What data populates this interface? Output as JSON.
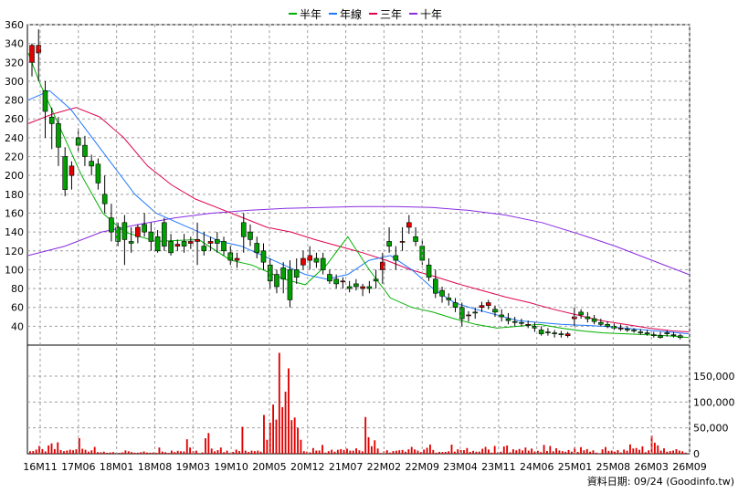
{
  "chart_data": {
    "type": "candlestick",
    "legend": [
      {
        "label": "半年",
        "color": "#00b000"
      },
      {
        "label": "年線",
        "color": "#1e78ff"
      },
      {
        "label": "三年",
        "color": "#e00050"
      },
      {
        "label": "十年",
        "color": "#8a2be2"
      }
    ],
    "price_axis": {
      "min": 20,
      "max": 360,
      "ticks": [
        40,
        60,
        80,
        100,
        120,
        140,
        160,
        180,
        200,
        220,
        240,
        260,
        280,
        300,
        320,
        340,
        360
      ]
    },
    "volume_axis": {
      "min": 0,
      "max": 210000,
      "ticks": [
        0,
        50000,
        100000,
        150000
      ],
      "tick_labels": [
        "0",
        "50,000",
        "100,000",
        "150,000"
      ]
    },
    "x_labels": [
      "16M11",
      "17M06",
      "18M01",
      "18M08",
      "19M03",
      "19M10",
      "20M05",
      "20M12",
      "21M07",
      "22M02",
      "22M09",
      "23M04",
      "23M11",
      "24M06",
      "25M01",
      "25M08",
      "26M03",
      "26M09"
    ],
    "candles": [
      [
        320,
        340,
        338,
        305
      ],
      [
        330,
        355,
        338,
        300
      ],
      [
        290,
        300,
        268,
        240
      ],
      [
        262,
        272,
        255,
        228
      ],
      [
        255,
        262,
        230,
        210
      ],
      [
        220,
        230,
        185,
        178
      ],
      [
        200,
        215,
        210,
        185
      ],
      [
        240,
        250,
        232,
        225
      ],
      [
        232,
        242,
        220,
        210
      ],
      [
        215,
        222,
        210,
        200
      ],
      [
        212,
        218,
        192,
        185
      ],
      [
        180,
        200,
        170,
        160
      ],
      [
        155,
        170,
        140,
        130
      ],
      [
        145,
        150,
        130,
        125
      ],
      [
        150,
        158,
        132,
        105
      ],
      [
        130,
        145,
        128,
        118
      ],
      [
        135,
        148,
        145,
        128
      ],
      [
        148,
        160,
        140,
        135
      ],
      [
        140,
        150,
        130,
        120
      ],
      [
        135,
        142,
        120,
        118
      ],
      [
        150,
        155,
        125,
        120
      ],
      [
        130,
        138,
        118,
        115
      ],
      [
        125,
        132,
        127,
        120
      ],
      [
        130,
        138,
        125,
        118
      ],
      [
        128,
        135,
        130,
        122
      ],
      [
        130,
        150,
        132,
        105
      ],
      [
        125,
        140,
        120,
        115
      ],
      [
        128,
        135,
        130,
        120
      ],
      [
        132,
        140,
        128,
        118
      ],
      [
        130,
        135,
        120,
        115
      ],
      [
        118,
        125,
        110,
        105
      ],
      [
        110,
        118,
        112,
        102
      ],
      [
        150,
        160,
        135,
        118
      ],
      [
        140,
        148,
        132,
        125
      ],
      [
        128,
        135,
        118,
        112
      ],
      [
        120,
        128,
        108,
        100
      ],
      [
        105,
        112,
        88,
        80
      ],
      [
        95,
        100,
        82,
        75
      ],
      [
        102,
        108,
        90,
        75
      ],
      [
        100,
        110,
        68,
        60
      ],
      [
        100,
        112,
        92,
        85
      ],
      [
        105,
        120,
        112,
        100
      ],
      [
        110,
        125,
        115,
        100
      ],
      [
        112,
        118,
        108,
        102
      ],
      [
        112,
        118,
        100,
        95
      ],
      [
        95,
        100,
        88,
        85
      ],
      [
        90,
        95,
        85,
        80
      ],
      [
        88,
        92,
        88,
        80
      ],
      [
        82,
        88,
        80,
        76
      ],
      [
        85,
        90,
        82,
        78
      ],
      [
        80,
        85,
        82,
        72
      ],
      [
        82,
        88,
        80,
        75
      ],
      [
        90,
        100,
        88,
        80
      ],
      [
        100,
        118,
        108,
        85
      ],
      [
        130,
        145,
        125,
        118
      ],
      [
        115,
        125,
        110,
        100
      ],
      [
        130,
        145,
        130,
        120
      ],
      [
        145,
        158,
        150,
        138
      ],
      [
        135,
        145,
        130,
        125
      ],
      [
        125,
        132,
        110,
        105
      ],
      [
        105,
        112,
        92,
        88
      ],
      [
        90,
        100,
        75,
        70
      ],
      [
        78,
        82,
        72,
        65
      ],
      [
        70,
        75,
        68,
        62
      ],
      [
        65,
        70,
        60,
        55
      ],
      [
        60,
        65,
        48,
        40
      ],
      [
        52,
        56,
        52,
        45
      ],
      [
        55,
        60,
        54,
        48
      ],
      [
        60,
        66,
        62,
        55
      ],
      [
        62,
        68,
        65,
        58
      ],
      [
        58,
        62,
        55,
        50
      ],
      [
        52,
        58,
        50,
        45
      ],
      [
        48,
        54,
        46,
        42
      ],
      [
        45,
        50,
        44,
        40
      ],
      [
        44,
        48,
        43,
        40
      ],
      [
        42,
        46,
        42,
        38
      ],
      [
        40,
        44,
        38,
        34
      ],
      [
        36,
        40,
        32,
        30
      ],
      [
        34,
        38,
        33,
        30
      ],
      [
        33,
        36,
        32,
        28
      ],
      [
        32,
        35,
        31,
        28
      ],
      [
        30,
        34,
        32,
        28
      ],
      [
        48,
        60,
        50,
        40
      ],
      [
        55,
        58,
        52,
        48
      ],
      [
        50,
        55,
        48,
        44
      ],
      [
        48,
        52,
        45,
        42
      ],
      [
        44,
        48,
        42,
        40
      ],
      [
        42,
        45,
        40,
        38
      ],
      [
        40,
        43,
        38,
        36
      ],
      [
        38,
        42,
        38,
        35
      ],
      [
        37,
        40,
        36,
        34
      ],
      [
        36,
        38,
        35,
        33
      ],
      [
        34,
        37,
        33,
        31
      ],
      [
        33,
        36,
        32,
        30
      ],
      [
        31,
        34,
        30,
        28
      ],
      [
        30,
        34,
        28,
        27
      ],
      [
        33,
        36,
        32,
        29
      ],
      [
        31,
        34,
        30,
        28
      ],
      [
        30,
        32,
        28,
        26
      ]
    ],
    "volumes": [
      4800,
      5200,
      8000,
      15000,
      9000,
      4500,
      16000,
      20000,
      9000,
      22000,
      7000,
      5000,
      6200,
      7800,
      6800,
      8500,
      30000,
      9600,
      7600,
      4000,
      6600,
      13200,
      3200,
      2800,
      4000,
      1800,
      2400,
      3200,
      1500,
      1800,
      2600,
      6400,
      4800,
      3300,
      2000,
      2000,
      3000,
      4400,
      2400,
      2000,
      2400,
      1800,
      12000,
      4200,
      3000,
      1600,
      6000,
      3200,
      5600,
      4700,
      4400,
      28000,
      12000,
      4800,
      6000,
      1200,
      2500,
      30000,
      40000,
      10000,
      4600,
      7000,
      12000,
      3000,
      6000,
      1500,
      3600,
      8000,
      5200,
      52000,
      6000,
      3400,
      6000,
      5000,
      6000,
      4000,
      75000,
      27000,
      60000,
      95000,
      66000,
      195000,
      90000,
      120000,
      165000,
      65000,
      70000,
      50000,
      27000,
      5000,
      4000,
      2600,
      11000,
      6000,
      6400,
      17000,
      2200,
      5000,
      7800,
      4000,
      7500,
      9000,
      7400,
      9800,
      6000,
      6000,
      10400,
      6600,
      4600,
      71000,
      32000,
      14500,
      26000,
      10000,
      1400,
      4400,
      6800,
      2100,
      5200,
      5800,
      6800,
      7300,
      4000,
      8600,
      13200,
      8300,
      6000,
      3000,
      8000,
      11600,
      17700,
      7400,
      2000,
      3600,
      3400,
      3600,
      4800,
      17600,
      4000,
      8600,
      7000,
      6900,
      11000,
      3600,
      5500,
      4000,
      4200,
      9600,
      13300,
      8100,
      2200,
      15000,
      2600,
      4000,
      14000,
      16000,
      2800,
      8600,
      6600,
      9200,
      6400,
      12000,
      6000,
      10000,
      4300,
      5700,
      3200,
      17000,
      5200,
      15000,
      4700,
      10600,
      6400,
      5000,
      3800,
      7200,
      4100,
      12000,
      3600,
      12700,
      6700,
      9000,
      4000,
      6600,
      2000,
      1000,
      8500,
      13000,
      5500,
      6000,
      4000,
      7000,
      2400,
      8000,
      5800,
      18000,
      10200,
      11100,
      7600,
      14300,
      3000,
      6600,
      35000,
      21400,
      16000,
      6100,
      10400,
      3900,
      5100,
      6200,
      8800,
      6000,
      4800,
      2100
    ],
    "ma_half": [
      [
        0,
        330
      ],
      [
        2,
        300
      ],
      [
        6,
        250
      ],
      [
        10,
        200
      ],
      [
        14,
        160
      ],
      [
        18,
        140
      ],
      [
        24,
        130
      ],
      [
        32,
        132
      ],
      [
        38,
        110
      ],
      [
        42,
        105
      ],
      [
        48,
        90
      ],
      [
        52,
        84
      ],
      [
        56,
        105
      ],
      [
        60,
        135
      ],
      [
        64,
        100
      ],
      [
        68,
        70
      ],
      [
        72,
        60
      ],
      [
        76,
        55
      ],
      [
        80,
        48
      ],
      [
        84,
        42
      ],
      [
        88,
        38
      ],
      [
        92,
        40
      ],
      [
        96,
        42
      ],
      [
        100,
        38
      ],
      [
        104,
        35
      ],
      [
        108,
        33
      ],
      [
        112,
        32
      ],
      [
        116,
        31
      ],
      [
        120,
        30
      ],
      [
        124,
        28
      ]
    ],
    "ma_year": [
      [
        0,
        280
      ],
      [
        4,
        290
      ],
      [
        8,
        270
      ],
      [
        12,
        240
      ],
      [
        16,
        210
      ],
      [
        20,
        180
      ],
      [
        24,
        160
      ],
      [
        28,
        150
      ],
      [
        32,
        140
      ],
      [
        36,
        130
      ],
      [
        40,
        125
      ],
      [
        44,
        115
      ],
      [
        48,
        105
      ],
      [
        52,
        95
      ],
      [
        56,
        90
      ],
      [
        60,
        95
      ],
      [
        64,
        110
      ],
      [
        68,
        115
      ],
      [
        72,
        100
      ],
      [
        76,
        80
      ],
      [
        80,
        65
      ],
      [
        84,
        58
      ],
      [
        88,
        52
      ],
      [
        92,
        46
      ],
      [
        96,
        44
      ],
      [
        100,
        42
      ],
      [
        104,
        41
      ],
      [
        108,
        40
      ],
      [
        112,
        38
      ],
      [
        116,
        36
      ],
      [
        120,
        34
      ],
      [
        124,
        32
      ]
    ],
    "ma_three": [
      [
        0,
        255
      ],
      [
        6,
        265
      ],
      [
        12,
        272
      ],
      [
        18,
        262
      ],
      [
        24,
        240
      ],
      [
        30,
        210
      ],
      [
        36,
        190
      ],
      [
        42,
        175
      ],
      [
        48,
        165
      ],
      [
        54,
        155
      ],
      [
        60,
        145
      ],
      [
        66,
        140
      ],
      [
        72,
        132
      ],
      [
        78,
        125
      ],
      [
        84,
        118
      ],
      [
        90,
        110
      ],
      [
        96,
        100
      ],
      [
        102,
        93
      ],
      [
        108,
        85
      ],
      [
        114,
        78
      ],
      [
        120,
        71
      ],
      [
        126,
        65
      ],
      [
        132,
        58
      ],
      [
        138,
        52
      ],
      [
        144,
        46
      ],
      [
        150,
        42
      ],
      [
        156,
        38
      ],
      [
        162,
        35
      ],
      [
        166,
        34
      ]
    ],
    "ma_ten": [
      [
        0,
        115
      ],
      [
        10,
        125
      ],
      [
        20,
        140
      ],
      [
        30,
        148
      ],
      [
        40,
        155
      ],
      [
        50,
        160
      ],
      [
        60,
        163
      ],
      [
        70,
        165
      ],
      [
        80,
        166
      ],
      [
        90,
        167
      ],
      [
        100,
        167
      ],
      [
        110,
        166
      ],
      [
        120,
        163
      ],
      [
        130,
        158
      ],
      [
        140,
        150
      ],
      [
        150,
        138
      ],
      [
        160,
        125
      ],
      [
        170,
        110
      ],
      [
        180,
        95
      ]
    ],
    "footer": "資料日期: 09/24  (Goodinfo.tw)"
  }
}
